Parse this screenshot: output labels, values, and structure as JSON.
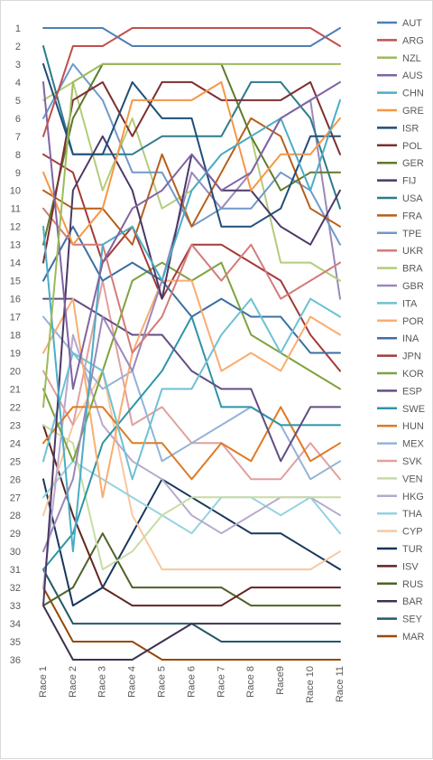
{
  "chart_data": {
    "type": "line",
    "title": "",
    "xlabel": "",
    "ylabel": "",
    "categories": [
      "Race 1",
      "Race 2",
      "Race 3",
      "Race 4",
      "Race 5",
      "Race 6",
      "Race 7",
      "Race 8",
      "Race9",
      "Race 10",
      "Race 11"
    ],
    "ylim": [
      1,
      36
    ],
    "y_reversed": true,
    "y_ticks": [
      1,
      2,
      3,
      4,
      5,
      6,
      7,
      8,
      9,
      10,
      11,
      12,
      13,
      14,
      15,
      16,
      17,
      18,
      19,
      20,
      21,
      22,
      23,
      24,
      25,
      26,
      27,
      28,
      29,
      30,
      31,
      32,
      33,
      34,
      35,
      36
    ],
    "grid": false,
    "legend_position": "right",
    "series": [
      {
        "name": "AUT",
        "color": "#4e7fb5",
        "values": [
          1,
          1,
          1,
          2,
          2,
          2,
          2,
          2,
          2,
          2,
          1
        ]
      },
      {
        "name": "ARG",
        "color": "#c0504d",
        "values": [
          7,
          2,
          2,
          1,
          1,
          1,
          1,
          1,
          1,
          1,
          2
        ]
      },
      {
        "name": "NZL",
        "color": "#9bbb59",
        "values": [
          22,
          4,
          3,
          3,
          3,
          3,
          3,
          3,
          3,
          3,
          3
        ]
      },
      {
        "name": "AUS",
        "color": "#8064a2",
        "values": [
          4,
          21,
          14,
          11,
          10,
          8,
          10,
          9,
          6,
          5,
          4
        ]
      },
      {
        "name": "CHN",
        "color": "#4bacc6",
        "values": [
          12,
          30,
          13,
          12,
          15,
          10,
          8,
          7,
          6,
          10,
          5
        ]
      },
      {
        "name": "GRE",
        "color": "#f79646",
        "values": [
          9,
          13,
          11,
          5,
          5,
          5,
          4,
          10,
          8,
          8,
          6
        ]
      },
      {
        "name": "ISR",
        "color": "#1f4e79",
        "values": [
          3,
          8,
          8,
          4,
          6,
          6,
          12,
          12,
          11,
          7,
          7
        ]
      },
      {
        "name": "POL",
        "color": "#7d2f30",
        "values": [
          14,
          5,
          4,
          7,
          4,
          4,
          5,
          5,
          5,
          4,
          8
        ]
      },
      {
        "name": "GER",
        "color": "#5e7a2c",
        "values": [
          13,
          6,
          3,
          3,
          3,
          3,
          3,
          7,
          10,
          9,
          9
        ]
      },
      {
        "name": "FIJ",
        "color": "#4b3866",
        "values": [
          33,
          10,
          7,
          10,
          16,
          8,
          10,
          10,
          12,
          13,
          10
        ]
      },
      {
        "name": "USA",
        "color": "#2a7b8c",
        "values": [
          2,
          8,
          8,
          8,
          7,
          7,
          7,
          4,
          4,
          6,
          11
        ]
      },
      {
        "name": "FRA",
        "color": "#b55f1c",
        "values": [
          10,
          11,
          11,
          13,
          8,
          12,
          9,
          6,
          7,
          11,
          12
        ]
      },
      {
        "name": "TPE",
        "color": "#6f99c9",
        "values": [
          6,
          3,
          5,
          9,
          9,
          12,
          11,
          11,
          9,
          10,
          13
        ]
      },
      {
        "name": "UKR",
        "color": "#d37b79",
        "values": [
          11,
          13,
          13,
          19,
          17,
          13,
          15,
          13,
          16,
          15,
          14
        ]
      },
      {
        "name": "BRA",
        "color": "#b3cc7a",
        "values": [
          5,
          4,
          10,
          6,
          11,
          10,
          8,
          7,
          14,
          14,
          15
        ]
      },
      {
        "name": "GBR",
        "color": "#9b88b9",
        "values": [
          30,
          26,
          17,
          20,
          15,
          9,
          11,
          9,
          6,
          5,
          16
        ]
      },
      {
        "name": "ITA",
        "color": "#6fc0d3",
        "values": [
          25,
          19,
          20,
          26,
          21,
          21,
          18,
          16,
          19,
          16,
          17
        ]
      },
      {
        "name": "POR",
        "color": "#f9ad70",
        "values": [
          19,
          16,
          27,
          19,
          15,
          15,
          20,
          19,
          20,
          17,
          18
        ]
      },
      {
        "name": "INA",
        "color": "#3c6fa3",
        "values": [
          15,
          12,
          15,
          14,
          15,
          17,
          16,
          17,
          17,
          19,
          19
        ]
      },
      {
        "name": "JPN",
        "color": "#a43a38",
        "values": [
          8,
          9,
          14,
          12,
          16,
          13,
          13,
          14,
          15,
          18,
          20
        ]
      },
      {
        "name": "KOR",
        "color": "#7ea33f",
        "values": [
          21,
          25,
          20,
          15,
          14,
          15,
          14,
          18,
          19,
          20,
          21
        ]
      },
      {
        "name": "ESP",
        "color": "#634d82",
        "values": [
          16,
          16,
          17,
          18,
          18,
          20,
          21,
          21,
          25,
          22,
          22
        ]
      },
      {
        "name": "SWE",
        "color": "#2f94a8",
        "values": [
          31,
          29,
          24,
          22,
          20,
          17,
          22,
          22,
          23,
          23,
          23
        ]
      },
      {
        "name": "HUN",
        "color": "#df7a23",
        "values": [
          24,
          22,
          22,
          24,
          24,
          26,
          24,
          25,
          22,
          25,
          24
        ]
      },
      {
        "name": "MEX",
        "color": "#93b3d9",
        "values": [
          17,
          19,
          21,
          20,
          25,
          24,
          23,
          22,
          23,
          26,
          25
        ]
      },
      {
        "name": "SVK",
        "color": "#e1a09e",
        "values": [
          20,
          23,
          15,
          23,
          22,
          24,
          24,
          26,
          26,
          24,
          26
        ]
      },
      {
        "name": "VEN",
        "color": "#c7dca3",
        "values": [
          23,
          24,
          31,
          30,
          28,
          27,
          27,
          27,
          27,
          27,
          27
        ]
      },
      {
        "name": "HKG",
        "color": "#b5a9cf",
        "values": [
          32,
          18,
          23,
          25,
          26,
          28,
          29,
          28,
          27,
          27,
          28
        ]
      },
      {
        "name": "THA",
        "color": "#93d2e2",
        "values": [
          27,
          25,
          26,
          27,
          28,
          29,
          27,
          27,
          28,
          27,
          29
        ]
      },
      {
        "name": "CYP",
        "color": "#fac79e",
        "values": [
          28,
          23,
          20,
          28,
          31,
          31,
          31,
          31,
          31,
          31,
          30
        ]
      },
      {
        "name": "TUR",
        "color": "#17365d",
        "values": [
          26,
          33,
          32,
          29,
          26,
          27,
          28,
          29,
          29,
          30,
          31
        ]
      },
      {
        "name": "ISV",
        "color": "#632523",
        "values": [
          23,
          28,
          32,
          33,
          33,
          33,
          33,
          32,
          32,
          32,
          32
        ]
      },
      {
        "name": "RUS",
        "color": "#4f6228",
        "values": [
          33,
          32,
          29,
          32,
          32,
          32,
          32,
          33,
          33,
          33,
          33
        ]
      },
      {
        "name": "BAR",
        "color": "#3f3151",
        "values": [
          33,
          36,
          36,
          36,
          35,
          34,
          34,
          34,
          34,
          34,
          34
        ]
      },
      {
        "name": "SEY",
        "color": "#215968",
        "values": [
          31,
          34,
          34,
          34,
          34,
          34,
          35,
          35,
          35,
          35,
          35
        ]
      },
      {
        "name": "MAR",
        "color": "#974806",
        "values": [
          32,
          35,
          35,
          35,
          36,
          36,
          36,
          36,
          36,
          36,
          36
        ]
      }
    ]
  }
}
